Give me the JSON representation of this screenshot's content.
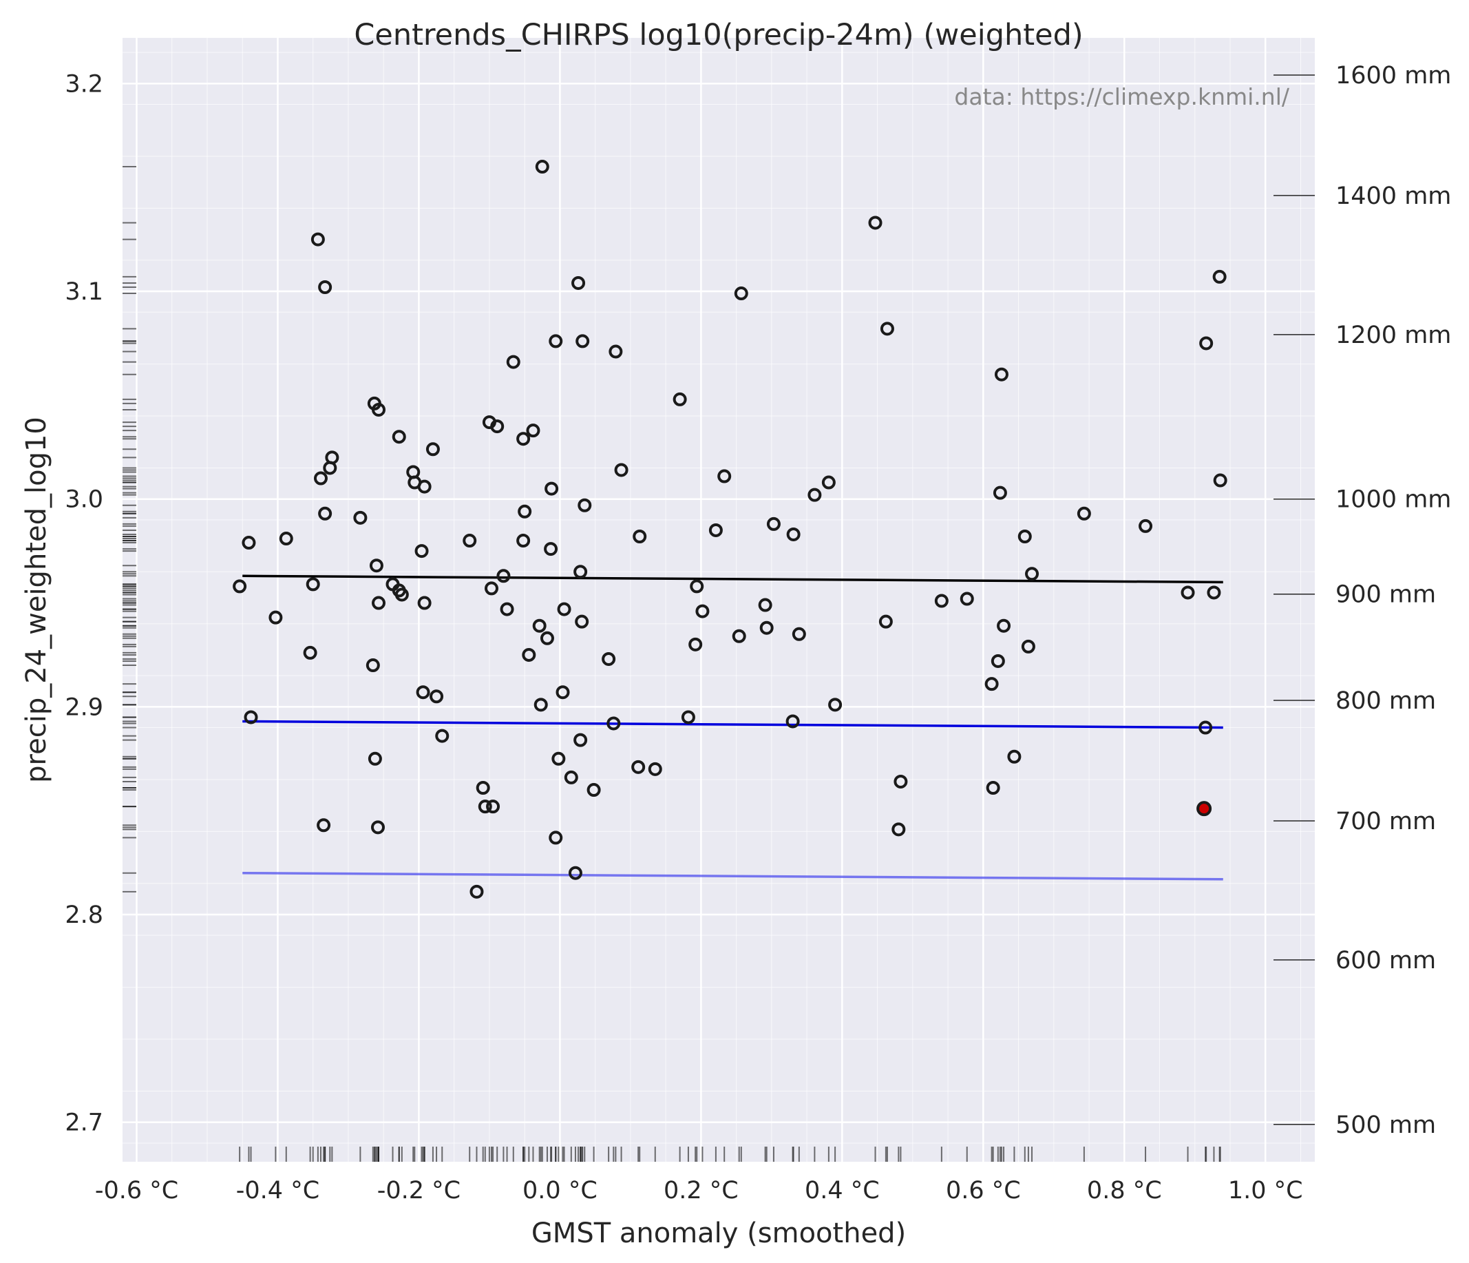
{
  "chart_data": {
    "type": "scatter",
    "title": "Centrends_CHIRPS log10(precip-24m) (weighted)",
    "xlabel": "GMST anomaly (smoothed)",
    "ylabel": "precip_24_weighted_log10",
    "credit": "data: https://climexp.knmi.nl/",
    "xlim": [
      -0.62,
      1.07
    ],
    "ylim": [
      2.681,
      3.222
    ],
    "grid": true,
    "x_ticks": [
      {
        "value": -0.6,
        "label": "-0.6 °C"
      },
      {
        "value": -0.4,
        "label": "-0.4 °C"
      },
      {
        "value": -0.2,
        "label": "-0.2 °C"
      },
      {
        "value": 0.0,
        "label": "0.0 °C"
      },
      {
        "value": 0.2,
        "label": "0.2 °C"
      },
      {
        "value": 0.4,
        "label": "0.4 °C"
      },
      {
        "value": 0.6,
        "label": "0.6 °C"
      },
      {
        "value": 0.8,
        "label": "0.8 °C"
      },
      {
        "value": 1.0,
        "label": "1.0 °C"
      }
    ],
    "y_ticks": [
      {
        "value": 2.7,
        "label": "2.7"
      },
      {
        "value": 2.8,
        "label": "2.8"
      },
      {
        "value": 2.9,
        "label": "2.9"
      },
      {
        "value": 3.0,
        "label": "3.0"
      },
      {
        "value": 3.1,
        "label": "3.1"
      },
      {
        "value": 3.2,
        "label": "3.2"
      }
    ],
    "right_ticks": [
      {
        "mm": 500,
        "label": "500 mm"
      },
      {
        "mm": 600,
        "label": "600 mm"
      },
      {
        "mm": 700,
        "label": "700 mm"
      },
      {
        "mm": 800,
        "label": "800 mm"
      },
      {
        "mm": 900,
        "label": "900 mm"
      },
      {
        "mm": 1000,
        "label": "1000 mm"
      },
      {
        "mm": 1200,
        "label": "1200 mm"
      },
      {
        "mm": 1400,
        "label": "1400 mm"
      },
      {
        "mm": 1600,
        "label": "1600 mm"
      }
    ],
    "fit_lines": [
      {
        "name": "",
        "color": "#000000",
        "opacity": 1.0,
        "x": [
          -0.45,
          0.94
        ],
        "y": [
          2.963,
          2.96
        ]
      },
      {
        "name": "",
        "color": "#0000dd",
        "opacity": 1.0,
        "x": [
          -0.45,
          0.94
        ],
        "y": [
          2.893,
          2.89
        ]
      },
      {
        "name": "",
        "color": "#4444ee",
        "opacity": 0.7,
        "x": [
          -0.45,
          0.94
        ],
        "y": [
          2.82,
          2.817
        ]
      }
    ],
    "highlight": {
      "x": 0.913,
      "y": 2.851,
      "color": "#cc0000"
    },
    "points": [
      [
        -0.454,
        2.958
      ],
      [
        -0.441,
        2.979
      ],
      [
        -0.438,
        2.895
      ],
      [
        -0.403,
        2.943
      ],
      [
        -0.388,
        2.981
      ],
      [
        -0.354,
        2.926
      ],
      [
        -0.35,
        2.959
      ],
      [
        -0.343,
        3.125
      ],
      [
        -0.339,
        3.01
      ],
      [
        -0.335,
        2.843
      ],
      [
        -0.333,
        3.102
      ],
      [
        -0.333,
        2.993
      ],
      [
        -0.326,
        3.015
      ],
      [
        -0.323,
        3.02
      ],
      [
        -0.283,
        2.991
      ],
      [
        -0.265,
        2.92
      ],
      [
        -0.263,
        3.046
      ],
      [
        -0.262,
        2.875
      ],
      [
        -0.26,
        2.968
      ],
      [
        -0.258,
        2.842
      ],
      [
        -0.257,
        3.043
      ],
      [
        -0.257,
        2.95
      ],
      [
        -0.237,
        2.959
      ],
      [
        -0.228,
        3.03
      ],
      [
        -0.228,
        2.956
      ],
      [
        -0.224,
        2.954
      ],
      [
        -0.208,
        3.013
      ],
      [
        -0.206,
        3.008
      ],
      [
        -0.196,
        2.975
      ],
      [
        -0.194,
        2.907
      ],
      [
        -0.192,
        3.006
      ],
      [
        -0.192,
        2.95
      ],
      [
        -0.18,
        3.024
      ],
      [
        -0.175,
        2.905
      ],
      [
        -0.167,
        2.886
      ],
      [
        -0.128,
        2.98
      ],
      [
        -0.118,
        2.811
      ],
      [
        -0.109,
        2.861
      ],
      [
        -0.106,
        2.852
      ],
      [
        -0.1,
        3.037
      ],
      [
        -0.097,
        2.957
      ],
      [
        -0.095,
        2.852
      ],
      [
        -0.089,
        3.035
      ],
      [
        -0.08,
        2.963
      ],
      [
        -0.075,
        2.947
      ],
      [
        -0.066,
        3.066
      ],
      [
        -0.052,
        3.029
      ],
      [
        -0.052,
        2.98
      ],
      [
        -0.05,
        2.994
      ],
      [
        -0.044,
        2.925
      ],
      [
        -0.038,
        3.033
      ],
      [
        -0.029,
        2.939
      ],
      [
        -0.027,
        2.901
      ],
      [
        -0.025,
        3.16
      ],
      [
        -0.018,
        2.933
      ],
      [
        -0.013,
        2.976
      ],
      [
        -0.012,
        3.005
      ],
      [
        -0.006,
        3.076
      ],
      [
        -0.006,
        2.837
      ],
      [
        -0.002,
        2.875
      ],
      [
        0.004,
        2.907
      ],
      [
        0.006,
        2.947
      ],
      [
        0.016,
        2.866
      ],
      [
        0.022,
        2.82
      ],
      [
        0.026,
        3.104
      ],
      [
        0.029,
        2.965
      ],
      [
        0.029,
        2.884
      ],
      [
        0.031,
        2.941
      ],
      [
        0.032,
        3.076
      ],
      [
        0.035,
        2.997
      ],
      [
        0.048,
        2.86
      ],
      [
        0.069,
        2.923
      ],
      [
        0.076,
        2.892
      ],
      [
        0.079,
        3.071
      ],
      [
        0.087,
        3.014
      ],
      [
        0.111,
        2.871
      ],
      [
        0.113,
        2.982
      ],
      [
        0.135,
        2.87
      ],
      [
        0.17,
        3.048
      ],
      [
        0.182,
        2.895
      ],
      [
        0.192,
        2.93
      ],
      [
        0.194,
        2.958
      ],
      [
        0.202,
        2.946
      ],
      [
        0.221,
        2.985
      ],
      [
        0.233,
        3.011
      ],
      [
        0.254,
        2.934
      ],
      [
        0.257,
        3.099
      ],
      [
        0.291,
        2.949
      ],
      [
        0.293,
        2.938
      ],
      [
        0.303,
        2.988
      ],
      [
        0.33,
        2.893
      ],
      [
        0.331,
        2.983
      ],
      [
        0.339,
        2.935
      ],
      [
        0.361,
        3.002
      ],
      [
        0.381,
        3.008
      ],
      [
        0.39,
        2.901
      ],
      [
        0.447,
        3.133
      ],
      [
        0.462,
        2.941
      ],
      [
        0.464,
        3.082
      ],
      [
        0.48,
        2.841
      ],
      [
        0.483,
        2.864
      ],
      [
        0.541,
        2.951
      ],
      [
        0.577,
        2.952
      ],
      [
        0.612,
        2.911
      ],
      [
        0.614,
        2.861
      ],
      [
        0.621,
        2.922
      ],
      [
        0.624,
        3.003
      ],
      [
        0.626,
        3.06
      ],
      [
        0.629,
        2.939
      ],
      [
        0.644,
        2.876
      ],
      [
        0.659,
        2.982
      ],
      [
        0.664,
        2.929
      ],
      [
        0.669,
        2.964
      ],
      [
        0.743,
        2.993
      ],
      [
        0.83,
        2.987
      ],
      [
        0.89,
        2.955
      ],
      [
        0.915,
        2.89
      ],
      [
        0.916,
        3.075
      ],
      [
        0.927,
        2.955
      ],
      [
        0.935,
        3.107
      ],
      [
        0.936,
        3.009
      ]
    ]
  }
}
